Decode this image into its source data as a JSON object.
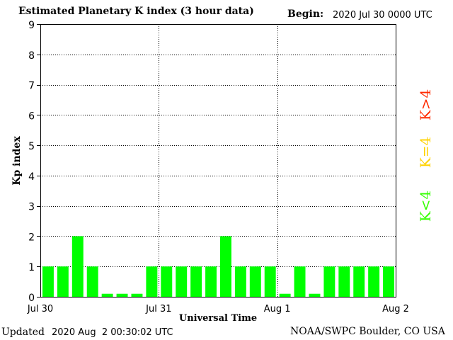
{
  "header": {
    "title": "Estimated Planetary K index (3 hour data)",
    "begin_label": "Begin:",
    "begin_value": "2020 Jul 30 0000 UTC"
  },
  "footer": {
    "updated_label": "Updated",
    "updated_value": "2020 Aug  2 00:30:02 UTC",
    "source": "NOAA/SWPC Boulder, CO USA"
  },
  "legend": {
    "above": "K>4",
    "equal": "K=4",
    "below": "K<4",
    "colors": {
      "above": "#ff2a00",
      "equal": "#ffd200",
      "below": "#33ff00"
    }
  },
  "chart_data": {
    "type": "bar",
    "xlabel": "Universal Time",
    "ylabel": "Kp index",
    "ylim": [
      0,
      9
    ],
    "yticks": [
      "0",
      "1",
      "2",
      "3",
      "4",
      "5",
      "6",
      "7",
      "8",
      "9"
    ],
    "day_labels": [
      "Jul 30",
      "Jul 31",
      "Aug 1",
      "Aug 2"
    ],
    "bars_per_day": 8,
    "grid": true,
    "bar_color": "#00ff00",
    "values": [
      1,
      1,
      2,
      1,
      0.1,
      0.1,
      0.1,
      1,
      1,
      1,
      1,
      1,
      2,
      1,
      1,
      1,
      0.1,
      1,
      0.1,
      1,
      1,
      1,
      1,
      1
    ]
  }
}
